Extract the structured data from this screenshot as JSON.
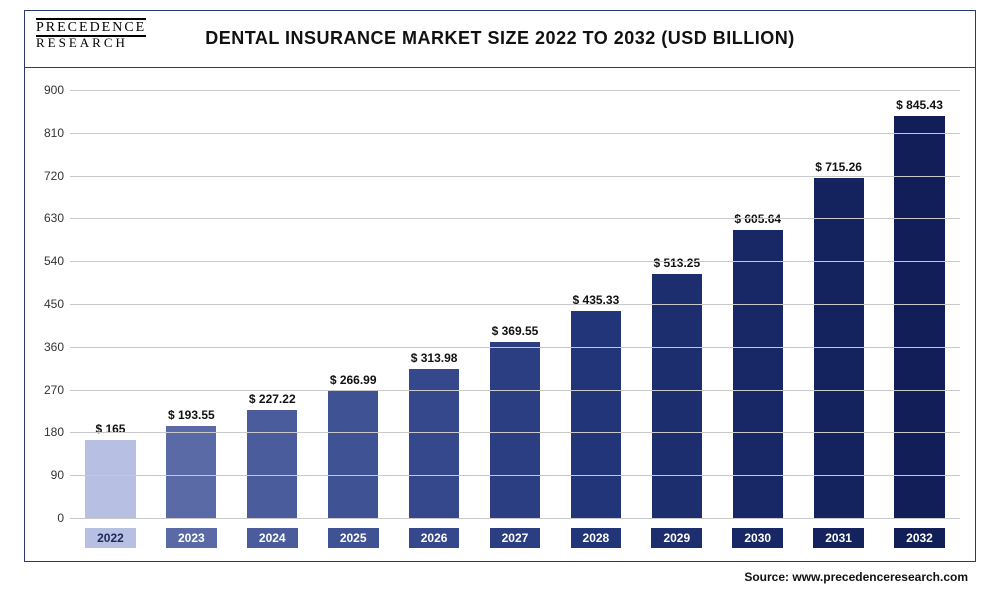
{
  "logo": {
    "line1": "PRECEDENCE",
    "line2": "RESEARCH"
  },
  "title": "DENTAL INSURANCE MARKET SIZE 2022 TO 2032 (USD BILLION)",
  "source": "Source: www.precedenceresearch.com",
  "chart": {
    "type": "bar",
    "ylim": [
      0,
      900
    ],
    "ytick_step": 90,
    "grid_color": "#c9c9c9",
    "background_color": "#ffffff",
    "bar_width": 0.62,
    "title_fontsize": 18,
    "label_fontsize": 12,
    "value_fontsize": 12,
    "categories": [
      "2022",
      "2023",
      "2024",
      "2025",
      "2026",
      "2027",
      "2028",
      "2029",
      "2030",
      "2031",
      "2032"
    ],
    "value_labels": [
      "$ 165",
      "$ 193.55",
      "$ 227.22",
      "$ 266.99",
      "$ 313.98",
      "$ 369.55",
      "$ 435.33",
      "$ 513.25",
      "$ 605.64",
      "$ 715.26",
      "$ 845.43"
    ],
    "values": [
      165,
      193.55,
      227.22,
      266.99,
      313.98,
      369.55,
      435.33,
      513.25,
      605.64,
      715.26,
      845.43
    ],
    "bar_colors": [
      "#b7c0e2",
      "#5a6aa6",
      "#4a5c9c",
      "#3f5294",
      "#35488b",
      "#2b3e82",
      "#223578",
      "#1c2e6e",
      "#182866",
      "#14235e",
      "#111e57"
    ],
    "pill_colors": [
      "#b7c0e2",
      "#5a6aa6",
      "#4a5c9c",
      "#3f5294",
      "#35488b",
      "#2b3e82",
      "#223578",
      "#1c2e6e",
      "#182866",
      "#14235e",
      "#111e57"
    ]
  }
}
